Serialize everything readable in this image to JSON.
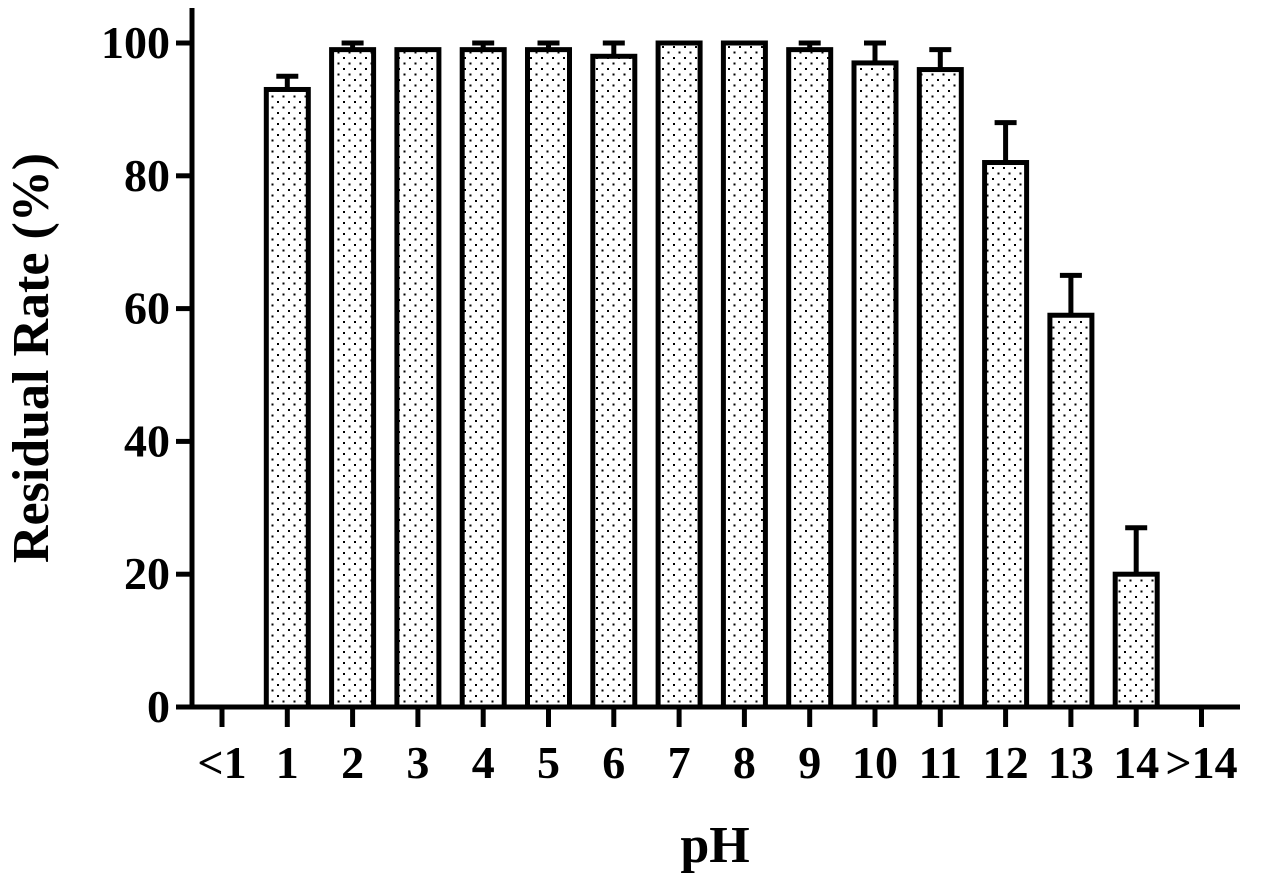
{
  "chart_data": {
    "type": "bar",
    "title": "",
    "xlabel": "pH",
    "ylabel": "Residual Rate (%)",
    "ylim": [
      0,
      100
    ],
    "yticks": [
      "0",
      "20",
      "40",
      "60",
      "80",
      "100"
    ],
    "categories": [
      "<1",
      "1",
      "2",
      "3",
      "4",
      "5",
      "6",
      "7",
      "8",
      "9",
      "10",
      "11",
      "12",
      "13",
      "14",
      ">14"
    ],
    "values": [
      null,
      93,
      99,
      99,
      99,
      99,
      98,
      100,
      100,
      99,
      97,
      96,
      82,
      59,
      20,
      null
    ],
    "errors": [
      null,
      2,
      1,
      0,
      1,
      1,
      2,
      0,
      0,
      1,
      3,
      3,
      6,
      6,
      7,
      null
    ],
    "bar_fill": "dotted",
    "grid": false,
    "legend": "none"
  }
}
